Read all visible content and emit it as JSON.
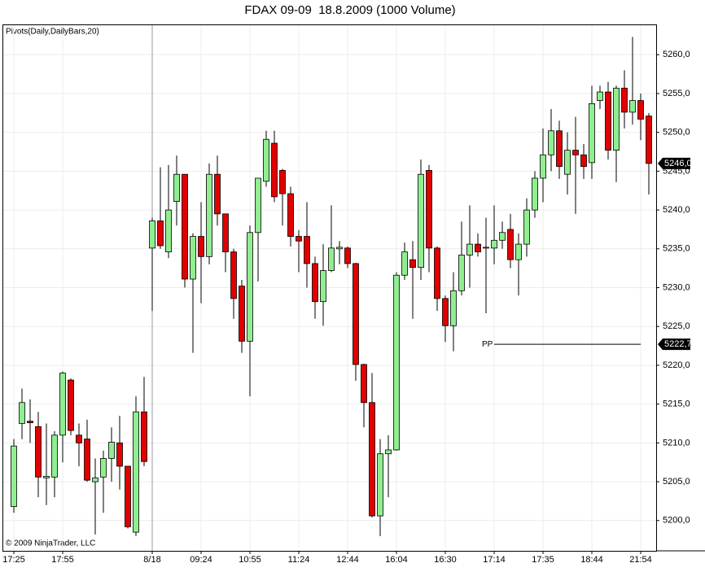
{
  "chart_data": {
    "type": "candlestick",
    "title": "FDAX 09-09  18.8.2009 (1000 Volume)",
    "indicator_label": "Pivots(Daily,DailyBars,20)",
    "copyright": "© 2009 NinjaTrader, LLC",
    "categories": [
      "17:25",
      null,
      null,
      null,
      null,
      null,
      "17:55",
      null,
      null,
      null,
      null,
      null,
      null,
      null,
      null,
      null,
      null,
      "8/18",
      null,
      null,
      null,
      null,
      null,
      "09:24",
      null,
      null,
      null,
      null,
      null,
      "10:55",
      null,
      null,
      null,
      null,
      null,
      "11:24",
      null,
      null,
      null,
      null,
      null,
      "12:44",
      null,
      null,
      null,
      null,
      null,
      "16:04",
      null,
      null,
      null,
      null,
      null,
      "16:30",
      null,
      null,
      null,
      null,
      null,
      "17:14",
      null,
      null,
      null,
      null,
      null,
      "17:35",
      null,
      null,
      null,
      null,
      null,
      "18:44",
      null,
      null,
      null,
      null,
      null,
      "21:54",
      null
    ],
    "open": [
      5201.8,
      5212.5,
      5212.8,
      5212.1,
      5205.5,
      5205.6,
      5211,
      5218.1,
      5211,
      5210.5,
      5205,
      5205.6,
      5208,
      5210,
      5207,
      5198.5,
      5214,
      5235.1,
      5238.6,
      5234.6,
      5241.1,
      5244.6,
      5231.1,
      5236.6,
      5234,
      5244.6,
      5239.5,
      5234.6,
      5230.2,
      5223.1,
      5237.1,
      5243.7,
      5248.6,
      5245.1,
      5242.1,
      5236.6,
      5236.6,
      5233.1,
      5228.2,
      5232.2,
      5235,
      5235.1,
      5233.1,
      5220.1,
      5215.2,
      5200.6,
      5208.6,
      5209.1,
      5231.6,
      5233.6,
      5232.6,
      5245.1,
      5235.1,
      5228.6,
      5225.1,
      5229.6,
      5234.2,
      5235.6,
      5235.1,
      5235.1,
      5236.1,
      5237.5,
      5233.6,
      5235.6,
      5240,
      5244.1,
      5247.1,
      5250.2,
      5244.6,
      5247.7,
      5247.1,
      5246.1,
      5254.1,
      5255.2,
      5247.7,
      5255.7,
      5252.6,
      5254.1,
      5252.1
    ],
    "high": [
      5210.5,
      5217,
      5215.6,
      5214,
      5212.5,
      5211.5,
      5219.2,
      5218.3,
      5212.5,
      5213,
      5208,
      5209,
      5212,
      5213.5,
      5207,
      5216,
      5218.5,
      5239,
      5245.5,
      5245.8,
      5247,
      5244.6,
      5237,
      5241,
      5246,
      5247,
      5239.5,
      5235,
      5231,
      5238,
      5244.1,
      5250.2,
      5250.2,
      5245.3,
      5243,
      5237.4,
      5241,
      5234,
      5235.6,
      5240.6,
      5236,
      5235.3,
      5233.2,
      5220.2,
      5219,
      5210.5,
      5211,
      5232,
      5235.8,
      5236,
      5246.5,
      5245.8,
      5235.3,
      5229,
      5232,
      5238.5,
      5240.6,
      5237,
      5239,
      5240.6,
      5238.5,
      5239.5,
      5237,
      5241.5,
      5245,
      5250.5,
      5253,
      5251.5,
      5250,
      5252,
      5248.5,
      5256,
      5256,
      5256.5,
      5256,
      5258,
      5262.3,
      5255,
      5252.5
    ],
    "low": [
      5201,
      5210.5,
      5210,
      5203,
      5202,
      5203,
      5207.5,
      5211,
      5207,
      5205,
      5198.2,
      5201,
      5205,
      5204,
      5199,
      5198,
      5207,
      5227,
      5235,
      5233.8,
      5238,
      5230,
      5221.6,
      5228,
      5233,
      5238,
      5232,
      5226,
      5221.6,
      5216,
      5230.8,
      5243,
      5241,
      5238,
      5235.3,
      5232,
      5230,
      5226,
      5225.1,
      5232,
      5233,
      5232.5,
      5218,
      5212,
      5200.4,
      5198,
      5203,
      5209,
      5231,
      5226,
      5231,
      5232,
      5227,
      5223,
      5221.8,
      5229,
      5230,
      5234,
      5226.7,
      5233,
      5235,
      5232.5,
      5229,
      5234,
      5239,
      5241,
      5245,
      5244,
      5242,
      5239.5,
      5244,
      5244,
      5253,
      5246.5,
      5243.6,
      5250.5,
      5251,
      5249,
      5242
    ],
    "close": [
      5209.6,
      5215.2,
      5212.6,
      5205.6,
      5205.7,
      5211,
      5219,
      5211.6,
      5210,
      5205.2,
      5205.5,
      5208,
      5210.1,
      5207,
      5199.2,
      5214,
      5207.6,
      5238.6,
      5235.4,
      5240,
      5244.6,
      5231.1,
      5236.6,
      5234,
      5244.6,
      5239.5,
      5234.6,
      5228.6,
      5223.1,
      5237.1,
      5244.1,
      5249.1,
      5241.7,
      5242.1,
      5236.6,
      5236,
      5233.1,
      5228.2,
      5232.2,
      5235.1,
      5235.2,
      5233.1,
      5220.1,
      5215.2,
      5200.6,
      5208.6,
      5209.1,
      5231.6,
      5234.6,
      5232.6,
      5244.6,
      5235.1,
      5228.6,
      5225.1,
      5229.6,
      5234.2,
      5235.6,
      5234.6,
      5235.2,
      5236.1,
      5237.1,
      5233.6,
      5235.6,
      5240,
      5244.1,
      5247.1,
      5250.2,
      5245.6,
      5247.7,
      5247.1,
      5245.6,
      5253.7,
      5255.2,
      5247.7,
      5255.7,
      5252.6,
      5254.1,
      5251.7,
      5246
    ],
    "up_color": "#90ee90",
    "down_color": "#e00000",
    "last_price": {
      "value": 5246,
      "label": "5246,0"
    },
    "pivot": {
      "name": "PP",
      "value": 5222.7,
      "label": "5222,7"
    },
    "ylim": [
      5196.1,
      5263.8
    ],
    "yticks": [
      {
        "value": 5200,
        "label": "5200,0"
      },
      {
        "value": 5205,
        "label": "5205,0"
      },
      {
        "value": 5210,
        "label": "5210,0"
      },
      {
        "value": 5215,
        "label": "5215,0"
      },
      {
        "value": 5220,
        "label": "5220,0"
      },
      {
        "value": 5225,
        "label": "5225,0"
      },
      {
        "value": 5230,
        "label": "5230,0"
      },
      {
        "value": 5235,
        "label": "5235,0"
      },
      {
        "value": 5240,
        "label": "5240,0"
      },
      {
        "value": 5245,
        "label": "5245,0"
      },
      {
        "value": 5250,
        "label": "5250,0"
      },
      {
        "value": 5255,
        "label": "5255,0"
      },
      {
        "value": 5260,
        "label": "5260,0"
      }
    ],
    "grid": true
  }
}
